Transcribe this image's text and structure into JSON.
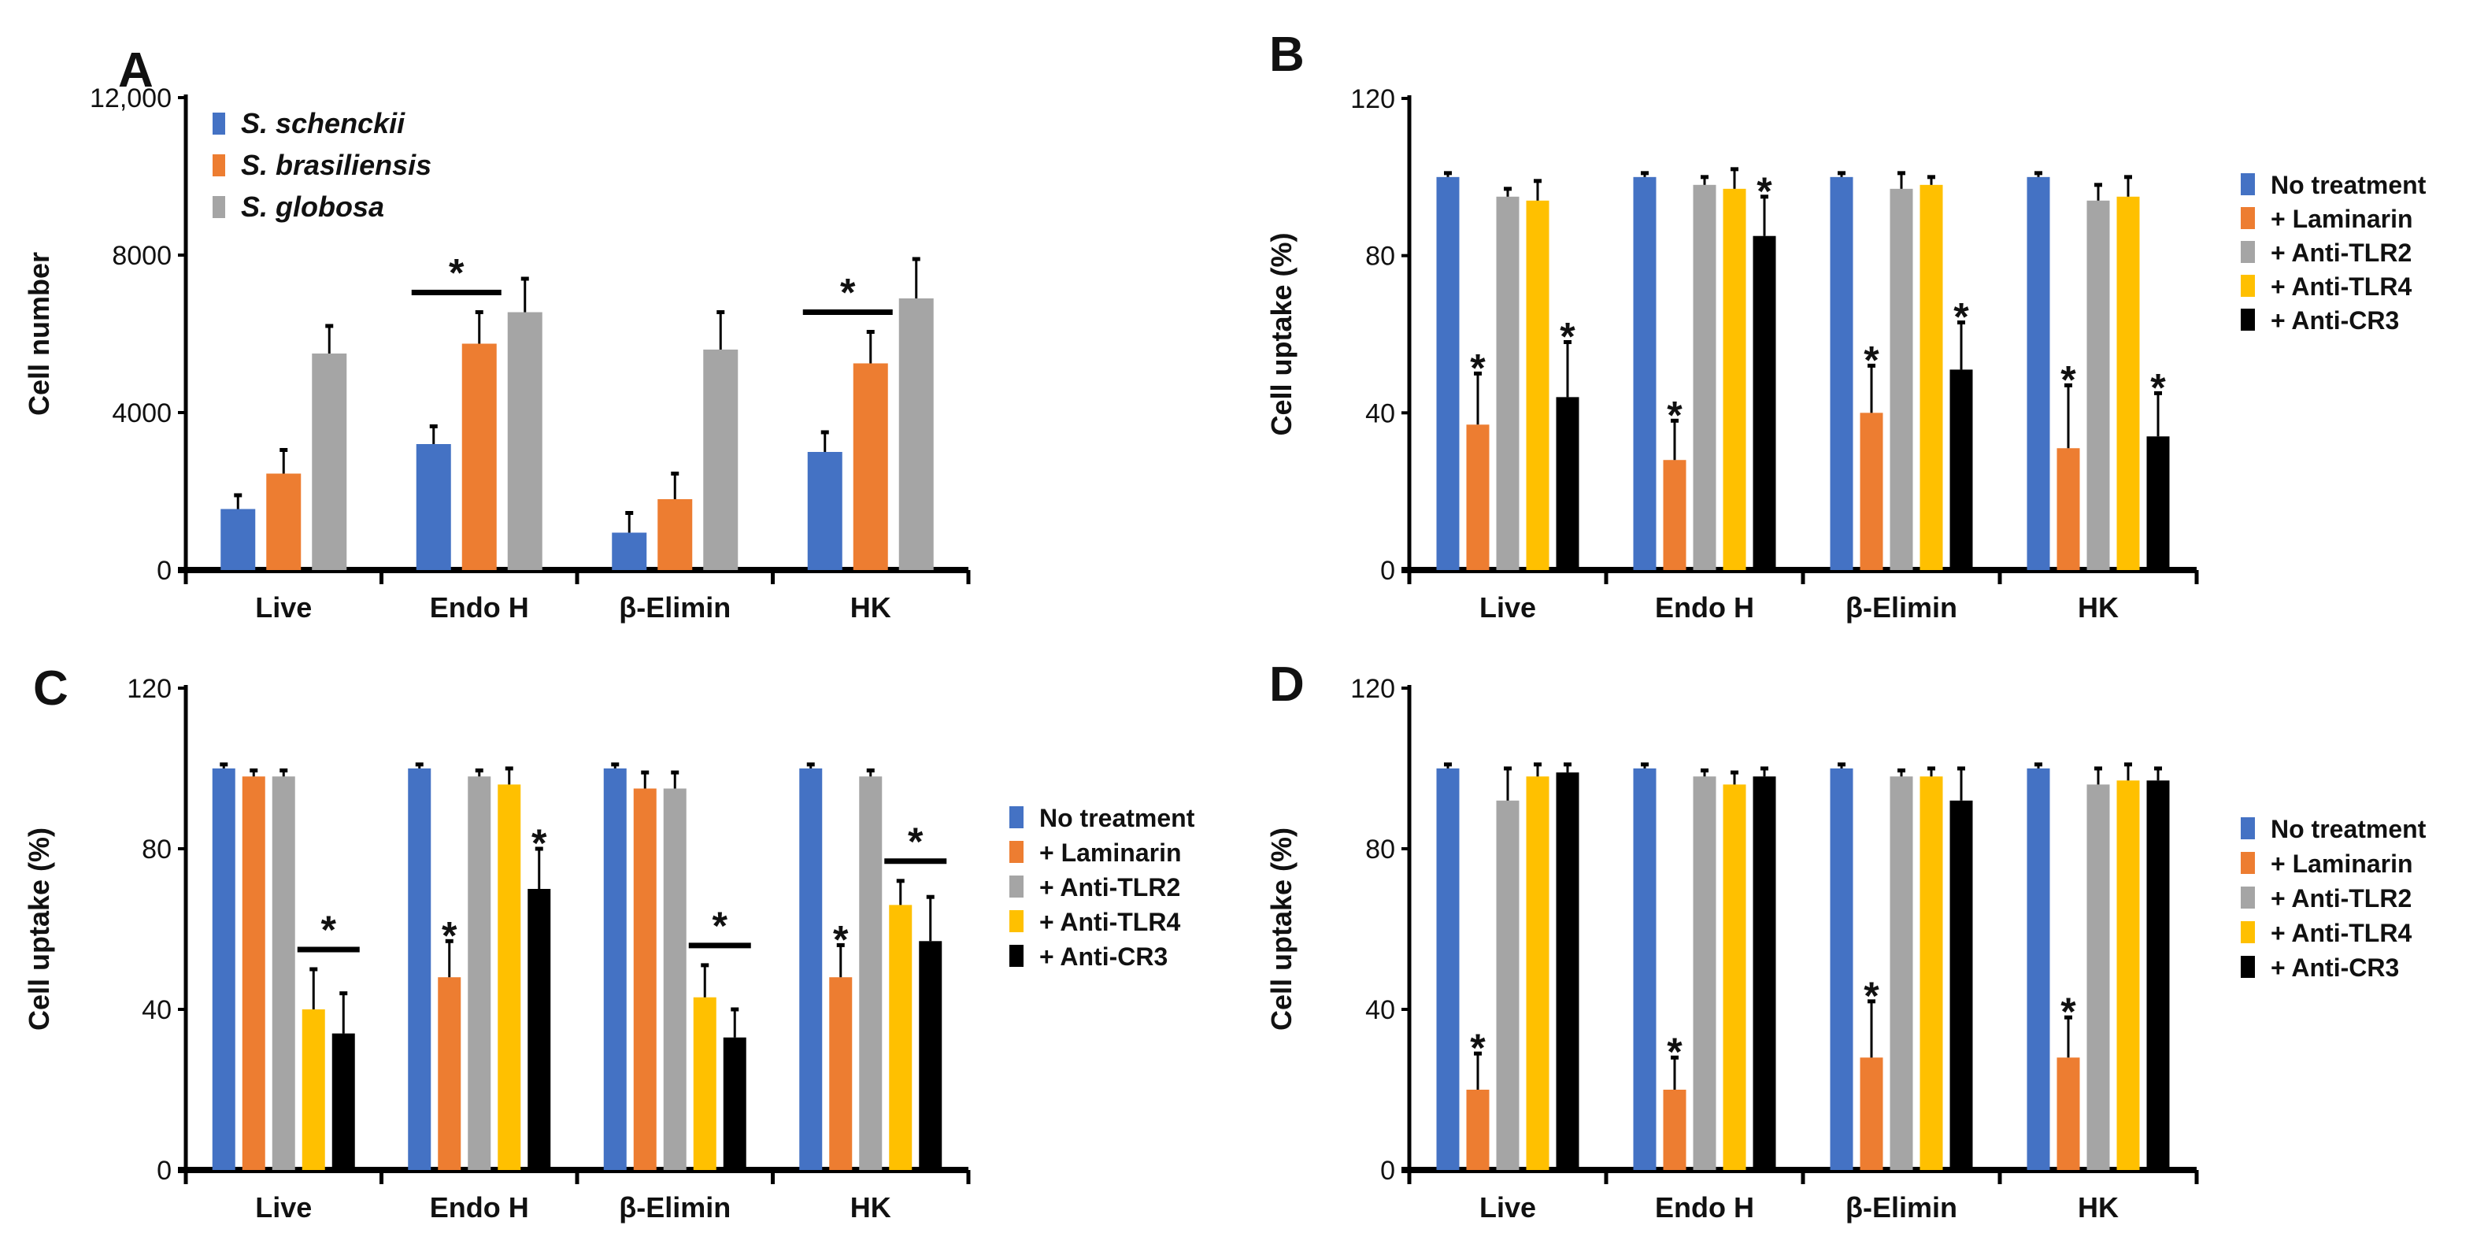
{
  "chart_data": [
    {
      "type": "bar",
      "panel": "A",
      "title": "",
      "xlabel": "",
      "ylabel": "Cell number",
      "ylim": [
        0,
        12000
      ],
      "yticks": [
        "0",
        "4000",
        "8000",
        "12,000"
      ],
      "ytick_values": [
        0,
        4000,
        8000,
        12000
      ],
      "categories": [
        "Live",
        "Endo H",
        "β-Elimin",
        "HK"
      ],
      "legend_position": "top-left",
      "legend_italic": true,
      "series": [
        {
          "name": "S. schenckii",
          "color": "#4472C4",
          "values": [
            1550,
            3200,
            950,
            3000
          ],
          "errors": [
            350,
            450,
            500,
            500
          ]
        },
        {
          "name": "S. brasiliensis",
          "color": "#ED7D31",
          "values": [
            2450,
            5750,
            1800,
            5250
          ],
          "errors": [
            600,
            800,
            650,
            800
          ]
        },
        {
          "name": "S. globosa",
          "color": "#A5A5A5",
          "values": [
            5500,
            6550,
            5600,
            6900
          ],
          "errors": [
            700,
            850,
            950,
            1000
          ]
        }
      ],
      "significance": [
        {
          "category": 1,
          "from": 0,
          "to": 1,
          "type": "bracket",
          "label": "*"
        },
        {
          "category": 3,
          "from": 0,
          "to": 1,
          "type": "bracket",
          "label": "*"
        }
      ]
    },
    {
      "type": "bar",
      "panel": "B",
      "title": "",
      "xlabel": "",
      "ylabel": "Cell uptake (%)",
      "ylim": [
        0,
        120
      ],
      "yticks": [
        "0",
        "40",
        "80",
        "120"
      ],
      "ytick_values": [
        0,
        40,
        80,
        120
      ],
      "categories": [
        "Live",
        "Endo H",
        "β-Elimin",
        "HK"
      ],
      "legend_position": "right",
      "series": [
        {
          "name": "No treatment",
          "color": "#4472C4",
          "values": [
            100,
            100,
            100,
            100
          ],
          "errors": [
            1,
            1,
            1,
            1
          ]
        },
        {
          "name": "+ Laminarin",
          "color": "#ED7D31",
          "values": [
            37,
            28,
            40,
            31
          ],
          "errors": [
            13,
            10,
            12,
            16
          ]
        },
        {
          "name": "+ Anti-TLR2",
          "color": "#A5A5A5",
          "values": [
            95,
            98,
            97,
            94
          ],
          "errors": [
            2,
            2,
            4,
            4
          ]
        },
        {
          "name": "+ Anti-TLR4",
          "color": "#FFC000",
          "values": [
            94,
            97,
            98,
            95
          ],
          "errors": [
            5,
            5,
            2,
            5
          ]
        },
        {
          "name": "+ Anti-CR3",
          "color": "#000000",
          "values": [
            44,
            85,
            51,
            34
          ],
          "errors": [
            14,
            10,
            12,
            11
          ]
        }
      ],
      "significance": [
        {
          "category": 0,
          "from": 1,
          "to": 1,
          "type": "star",
          "label": "*"
        },
        {
          "category": 0,
          "from": 4,
          "to": 4,
          "type": "star",
          "label": "*"
        },
        {
          "category": 1,
          "from": 1,
          "to": 1,
          "type": "star",
          "label": "*"
        },
        {
          "category": 1,
          "from": 4,
          "to": 4,
          "type": "star",
          "label": "*"
        },
        {
          "category": 2,
          "from": 1,
          "to": 1,
          "type": "star",
          "label": "*"
        },
        {
          "category": 2,
          "from": 4,
          "to": 4,
          "type": "star",
          "label": "*"
        },
        {
          "category": 3,
          "from": 1,
          "to": 1,
          "type": "star",
          "label": "*"
        },
        {
          "category": 3,
          "from": 4,
          "to": 4,
          "type": "star",
          "label": "*"
        }
      ]
    },
    {
      "type": "bar",
      "panel": "C",
      "title": "",
      "xlabel": "",
      "ylabel": "Cell uptake (%)",
      "ylim": [
        0,
        120
      ],
      "yticks": [
        "0",
        "40",
        "80",
        "120"
      ],
      "ytick_values": [
        0,
        40,
        80,
        120
      ],
      "categories": [
        "Live",
        "Endo H",
        "β-Elimin",
        "HK"
      ],
      "legend_position": "right",
      "series": [
        {
          "name": "No treatment",
          "color": "#4472C4",
          "values": [
            100,
            100,
            100,
            100
          ],
          "errors": [
            1,
            1,
            1,
            1
          ]
        },
        {
          "name": "+ Laminarin",
          "color": "#ED7D31",
          "values": [
            98,
            48,
            95,
            48
          ],
          "errors": [
            1.5,
            9,
            4,
            8
          ]
        },
        {
          "name": "+ Anti-TLR2",
          "color": "#A5A5A5",
          "values": [
            98,
            98,
            95,
            98
          ],
          "errors": [
            1.5,
            1.5,
            4,
            1.5
          ]
        },
        {
          "name": "+ Anti-TLR4",
          "color": "#FFC000",
          "values": [
            40,
            96,
            43,
            66
          ],
          "errors": [
            10,
            4,
            8,
            6
          ]
        },
        {
          "name": "+ Anti-CR3",
          "color": "#000000",
          "values": [
            34,
            70,
            33,
            57
          ],
          "errors": [
            10,
            10,
            7,
            11
          ]
        }
      ],
      "significance": [
        {
          "category": 0,
          "from": 3,
          "to": 4,
          "type": "bracket",
          "label": "*"
        },
        {
          "category": 1,
          "from": 1,
          "to": 1,
          "type": "star",
          "label": "*"
        },
        {
          "category": 1,
          "from": 4,
          "to": 4,
          "type": "star",
          "label": "*"
        },
        {
          "category": 2,
          "from": 3,
          "to": 4,
          "type": "bracket",
          "label": "*"
        },
        {
          "category": 3,
          "from": 1,
          "to": 1,
          "type": "star",
          "label": "*"
        },
        {
          "category": 3,
          "from": 3,
          "to": 4,
          "type": "bracket",
          "label": "*"
        }
      ]
    },
    {
      "type": "bar",
      "panel": "D",
      "title": "",
      "xlabel": "",
      "ylabel": "Cell uptake (%)",
      "ylim": [
        0,
        120
      ],
      "yticks": [
        "0",
        "40",
        "80",
        "120"
      ],
      "ytick_values": [
        0,
        40,
        80,
        120
      ],
      "categories": [
        "Live",
        "Endo H",
        "β-Elimin",
        "HK"
      ],
      "legend_position": "right",
      "series": [
        {
          "name": "No treatment",
          "color": "#4472C4",
          "values": [
            100,
            100,
            100,
            100
          ],
          "errors": [
            1,
            1,
            1,
            1
          ]
        },
        {
          "name": "+ Laminarin",
          "color": "#ED7D31",
          "values": [
            20,
            20,
            28,
            28
          ],
          "errors": [
            9,
            8,
            14,
            10
          ]
        },
        {
          "name": "+ Anti-TLR2",
          "color": "#A5A5A5",
          "values": [
            92,
            98,
            98,
            96
          ],
          "errors": [
            8,
            1.5,
            1.5,
            4
          ]
        },
        {
          "name": "+ Anti-TLR4",
          "color": "#FFC000",
          "values": [
            98,
            96,
            98,
            97
          ],
          "errors": [
            3,
            3,
            2,
            4
          ]
        },
        {
          "name": "+ Anti-CR3",
          "color": "#000000",
          "values": [
            99,
            98,
            92,
            97
          ],
          "errors": [
            2,
            2,
            8,
            3
          ]
        }
      ],
      "significance": [
        {
          "category": 0,
          "from": 1,
          "to": 1,
          "type": "star",
          "label": "*"
        },
        {
          "category": 1,
          "from": 1,
          "to": 1,
          "type": "star",
          "label": "*"
        },
        {
          "category": 2,
          "from": 1,
          "to": 1,
          "type": "star",
          "label": "*"
        },
        {
          "category": 3,
          "from": 1,
          "to": 1,
          "type": "star",
          "label": "*"
        }
      ]
    }
  ]
}
